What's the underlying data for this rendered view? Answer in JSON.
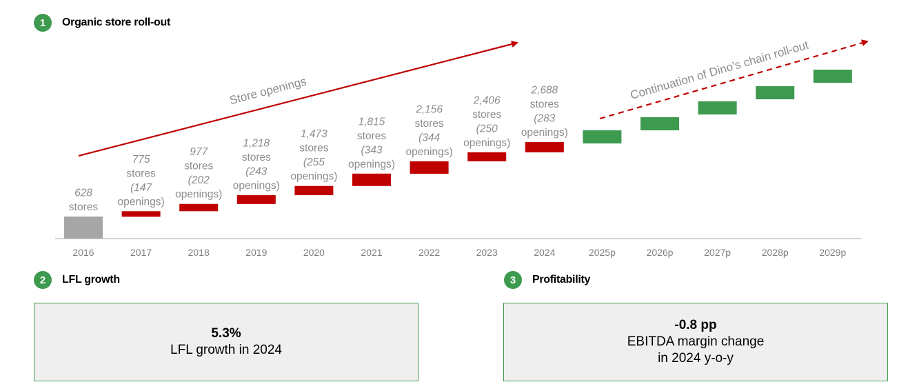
{
  "colors": {
    "green": "#3d9a4e",
    "red": "#c00000",
    "gray": "#a6a6a6",
    "label_gray": "#8c8c8c",
    "kpi_border": "#3d9a4e",
    "kpi_bg": "#efefef"
  },
  "sections": [
    {
      "number": "1",
      "title": "Organic store roll-out"
    },
    {
      "number": "2",
      "title": "LFL growth"
    },
    {
      "number": "3",
      "title": "Profitability"
    }
  ],
  "kpis": [
    {
      "value": "5.3%",
      "lines": [
        "LFL growth in 2024"
      ]
    },
    {
      "value": "-0.8 pp",
      "lines": [
        "EBITDA margin change",
        "in 2024 y-o-y"
      ]
    }
  ],
  "chart_data": {
    "type": "bar",
    "title": "Organic store roll-out",
    "categories": [
      "2016",
      "2017",
      "2018",
      "2019",
      "2020",
      "2021",
      "2022",
      "2023",
      "2024",
      "2025p",
      "2026p",
      "2027p",
      "2028p",
      "2029p"
    ],
    "series": [
      {
        "values": [
          628,
          775,
          977,
          1218,
          1473,
          1815,
          2156,
          2406,
          2688,
          null,
          null,
          null,
          null,
          null
        ]
      }
    ],
    "bar_kinds": [
      "base",
      "actual",
      "actual",
      "actual",
      "actual",
      "actual",
      "actual",
      "actual",
      "actual",
      "projected",
      "projected",
      "projected",
      "projected",
      "projected"
    ],
    "openings": [
      null,
      147,
      202,
      243,
      255,
      343,
      344,
      250,
      283,
      null,
      null,
      null,
      null,
      null
    ],
    "data_labels": [
      [
        "628",
        "stores"
      ],
      [
        "775",
        "stores",
        "(147",
        "openings)"
      ],
      [
        "977",
        "stores",
        "(202",
        "openings)"
      ],
      [
        "1,218",
        "stores",
        "(243",
        "openings)"
      ],
      [
        "1,473",
        "stores",
        "(255",
        "openings)"
      ],
      [
        "1,815",
        "stores",
        "(343",
        "openings)"
      ],
      [
        "2,156",
        "stores",
        "(344",
        "openings)"
      ],
      [
        "2,406",
        "stores",
        "(250",
        "openings)"
      ],
      [
        "2,688",
        "stores",
        "(283",
        "openings)"
      ]
    ],
    "annotations": [
      "Store openings",
      "Continuation of Dino’s chain roll-out"
    ],
    "grid": false,
    "legend": "none"
  }
}
